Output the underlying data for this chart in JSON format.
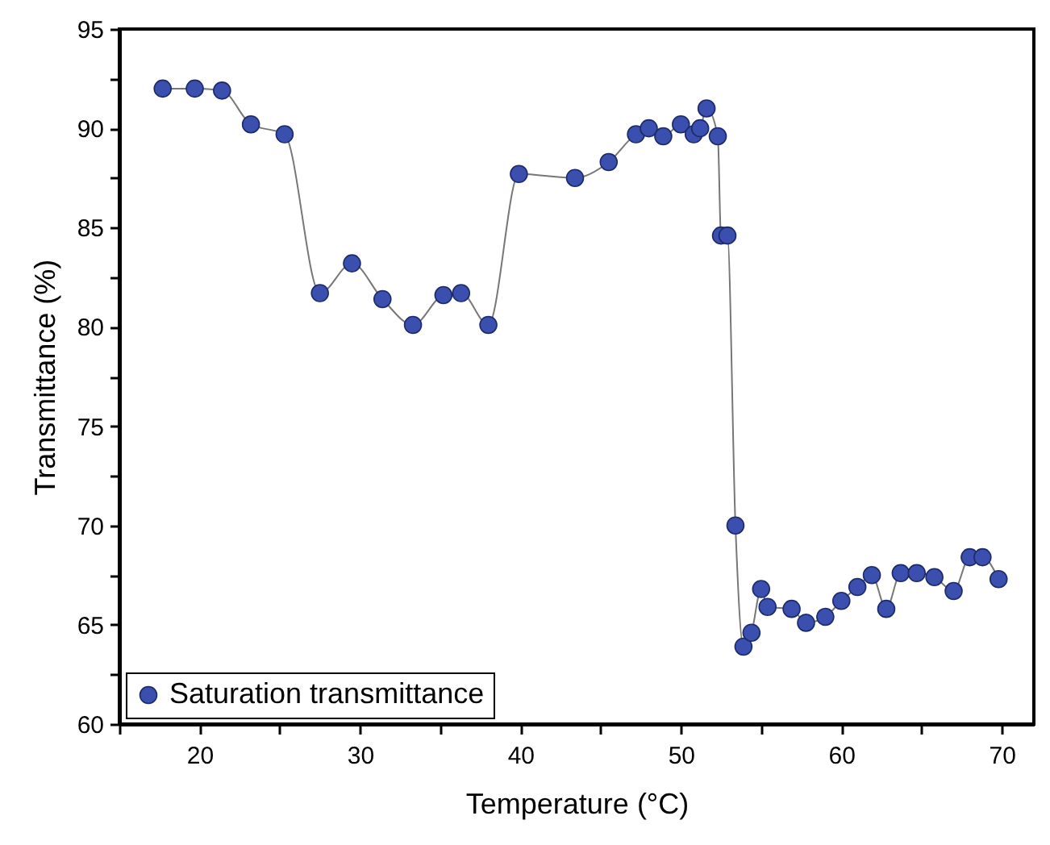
{
  "chart_data": {
    "type": "line",
    "xlabel": "Temperature (°C)",
    "ylabel": "Transmittance (%)",
    "xlim": [
      15,
      72
    ],
    "ylim": [
      60,
      95
    ],
    "xticks": [
      {
        "value": 15,
        "label": null
      },
      20,
      {
        "value": 25,
        "label": null
      },
      30,
      {
        "value": 35,
        "label": null
      },
      40,
      {
        "value": 45,
        "label": null
      },
      50,
      {
        "value": 55,
        "label": null
      },
      60,
      {
        "value": 65,
        "label": null
      },
      70
    ],
    "yticks": [
      60,
      {
        "value": 62.5,
        "label": null
      },
      65,
      {
        "value": 67.5,
        "label": null
      },
      70,
      {
        "value": 72.5,
        "label": null
      },
      75,
      {
        "value": 77.5,
        "label": null
      },
      80,
      {
        "value": 82.5,
        "label": null
      },
      85,
      {
        "value": 87.5,
        "label": null
      },
      90,
      {
        "value": 92.5,
        "label": null
      },
      95
    ],
    "grid": false,
    "legend": "bottom left",
    "marker": "circle",
    "line_style": "solid",
    "x": [
      17.7,
      19.7,
      21.4,
      23.2,
      25.3,
      27.5,
      29.5,
      31.4,
      33.3,
      35.2,
      36.3,
      38.0,
      39.9,
      43.4,
      45.5,
      47.2,
      48.0,
      48.9,
      50.0,
      50.8,
      51.2,
      51.6,
      52.3,
      52.5,
      52.9,
      53.4,
      53.9,
      54.4,
      55.0,
      55.4,
      56.9,
      57.8,
      59.0,
      60.0,
      61.0,
      61.9,
      62.8,
      63.7,
      64.7,
      65.8,
      67.0,
      68.0,
      68.8,
      69.8
    ],
    "series": [
      {
        "name": "Saturation transmittance",
        "color": "#3a4fae",
        "values": [
          92.0,
          92.0,
          91.9,
          90.2,
          89.7,
          81.7,
          83.2,
          81.4,
          80.1,
          81.6,
          81.7,
          80.1,
          87.7,
          87.5,
          88.3,
          89.7,
          90.0,
          89.6,
          90.2,
          89.7,
          90.0,
          91.0,
          89.6,
          84.6,
          84.6,
          70.0,
          63.9,
          64.6,
          66.8,
          65.9,
          65.8,
          65.1,
          65.4,
          66.2,
          66.9,
          67.5,
          65.8,
          67.6,
          67.6,
          67.4,
          66.7,
          68.4,
          68.4,
          67.3
        ]
      }
    ]
  }
}
